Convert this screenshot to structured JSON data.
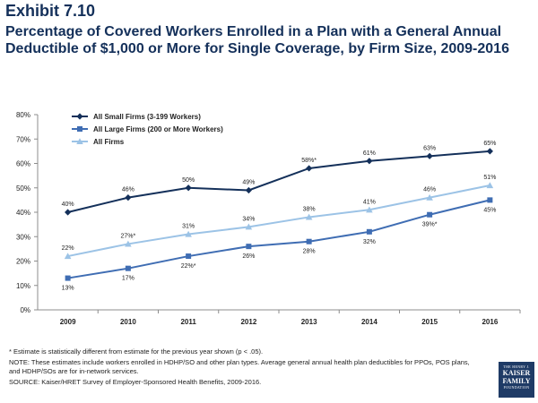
{
  "header": {
    "exhibit": "Exhibit 7.10",
    "title": "Percentage of Covered Workers Enrolled in a Plan with a General Annual Deductible of $1,000 or More for Single Coverage, by Firm Size, 2009-2016"
  },
  "chart_data": {
    "type": "line",
    "x": [
      "2009",
      "2010",
      "2011",
      "2012",
      "2013",
      "2014",
      "2015",
      "2016"
    ],
    "ylim": [
      0,
      80
    ],
    "yticks": [
      "0%",
      "10%",
      "20%",
      "30%",
      "40%",
      "50%",
      "60%",
      "70%",
      "80%"
    ],
    "grid": false,
    "legend_position": "top-left",
    "series": [
      {
        "name": "All Small Firms (3-199 Workers)",
        "color": "#14305a",
        "marker": "diamond",
        "values": [
          40,
          46,
          50,
          49,
          58,
          61,
          63,
          65
        ],
        "labels": [
          "40%",
          "46%",
          "50%",
          "49%",
          "58%*",
          "61%",
          "63%",
          "65%"
        ],
        "label_position": "above"
      },
      {
        "name": "All Large Firms (200 or More Workers)",
        "color": "#3f6db3",
        "marker": "square",
        "values": [
          13,
          17,
          22,
          26,
          28,
          32,
          39,
          45
        ],
        "labels": [
          "13%",
          "17%",
          "22%*",
          "26%",
          "28%",
          "32%",
          "39%*",
          "45%"
        ],
        "label_position": "below"
      },
      {
        "name": "All Firms",
        "color": "#9cc3e6",
        "marker": "triangle",
        "values": [
          22,
          27,
          31,
          34,
          38,
          41,
          46,
          51
        ],
        "labels": [
          "22%",
          "27%*",
          "31%",
          "34%",
          "38%",
          "41%",
          "46%",
          "51%"
        ],
        "label_position": "above"
      }
    ]
  },
  "notes": {
    "asterisk": "* Estimate is statistically different from estimate for the previous year shown (p < .05).",
    "note": "NOTE: These estimates include workers enrolled in HDHP/SO and other plan types. Average general annual health plan deductibles for PPOs, POS plans, and HDHP/SOs are for in-network services.",
    "source": "SOURCE: Kaiser/HRET Survey of Employer-Sponsored Health Benefits, 2009-2016."
  },
  "logo": {
    "top": "THE HENRY J.",
    "middle1": "KAISER",
    "middle2": "FAMILY",
    "bottom": "FOUNDATION"
  }
}
